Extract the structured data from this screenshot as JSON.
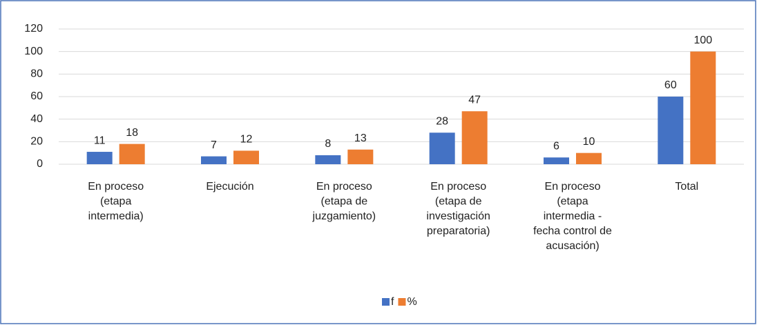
{
  "chart_data": {
    "type": "bar",
    "categories": [
      "En proceso\n(etapa\nintermedia)",
      "Ejecución",
      "En proceso\n(etapa de\njuzgamiento)",
      "En proceso\n(etapa de\ninvestigación\npreparatoria)",
      "En proceso\n(etapa\nintermedia -\nfecha control de\nacusación)",
      "Total"
    ],
    "series": [
      {
        "name": "f",
        "color": "#4472c4",
        "values": [
          11,
          7,
          8,
          28,
          6,
          60
        ]
      },
      {
        "name": "%",
        "color": "#ed7d31",
        "values": [
          18,
          12,
          13,
          47,
          10,
          100
        ]
      }
    ],
    "ylim": [
      0,
      120
    ],
    "yticks": [
      0,
      20,
      40,
      60,
      80,
      100,
      120
    ],
    "grid": true,
    "legend": "bottom"
  }
}
